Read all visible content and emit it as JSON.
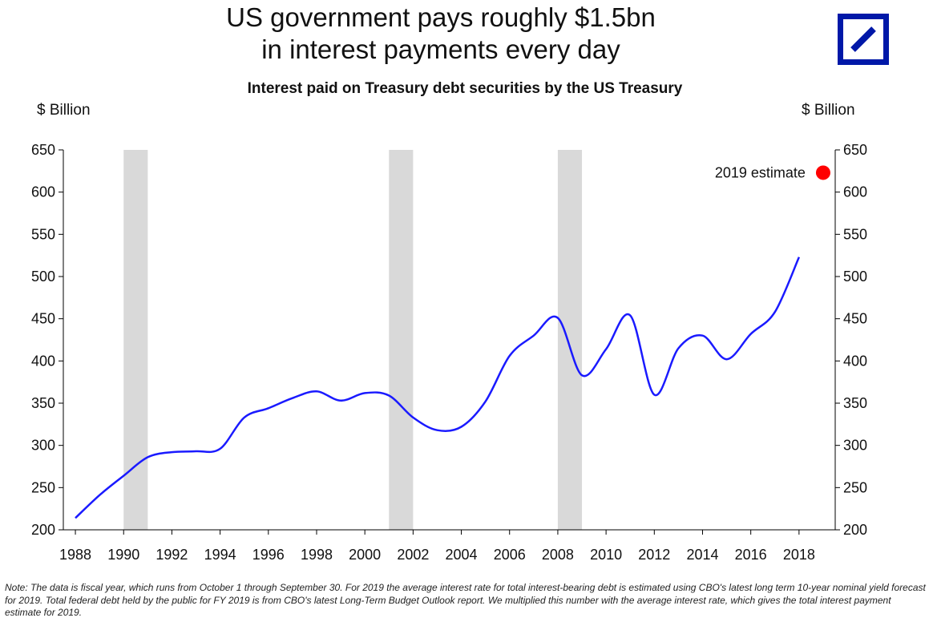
{
  "title_line1": "US government pays roughly $1.5bn",
  "title_line2": "in interest payments every day",
  "logo_name": "deutsche-bank-logo",
  "note": "Note: The data is fiscal year, which runs from October 1 through September 30. For 2019 the average interest rate for total interest-bearing debt is estimated using CBO's latest long term 10-year nominal yield forecast for 2019. Total federal debt held by the public for FY 2019 is from CBO's latest Long-Term Budget Outlook report. We multiplied this number with the average interest rate, which gives the total interest payment estimate for 2019.",
  "colors": {
    "line": "#1a1aff",
    "estimate": "#ff0000",
    "recession": "#d9d9d9",
    "logo": "#0018a8"
  },
  "chart_data": {
    "type": "line",
    "title": "Interest paid on Treasury debt securities by the US Treasury",
    "ylabel_left": "$ Billion",
    "ylabel_right": "$ Billion",
    "xlim": [
      1987.5,
      2019.5
    ],
    "ylim": [
      200,
      650
    ],
    "yticks": [
      200,
      250,
      300,
      350,
      400,
      450,
      500,
      550,
      600,
      650
    ],
    "xticks": [
      1988,
      1990,
      1992,
      1994,
      1996,
      1998,
      2000,
      2002,
      2004,
      2006,
      2008,
      2010,
      2012,
      2014,
      2016,
      2018
    ],
    "series": [
      {
        "name": "Interest paid",
        "x": [
          1988,
          1989,
          1990,
          1991,
          1992,
          1993,
          1994,
          1995,
          1996,
          1997,
          1998,
          1999,
          2000,
          2001,
          2002,
          2003,
          2004,
          2005,
          2006,
          2007,
          2008,
          2009,
          2010,
          2011,
          2012,
          2013,
          2014,
          2015,
          2016,
          2017,
          2018
        ],
        "values": [
          214,
          241,
          264,
          286,
          292,
          293,
          296,
          333,
          344,
          356,
          364,
          353,
          362,
          359,
          333,
          318,
          322,
          352,
          406,
          430,
          451,
          383,
          414,
          454,
          360,
          415,
          430,
          402,
          432,
          458,
          523
        ]
      }
    ],
    "estimate": {
      "label": "2019 estimate",
      "x": 2019,
      "value": 623
    },
    "recessions": [
      [
        1990,
        1991
      ],
      [
        2001,
        2002
      ],
      [
        2008,
        2009
      ]
    ]
  }
}
